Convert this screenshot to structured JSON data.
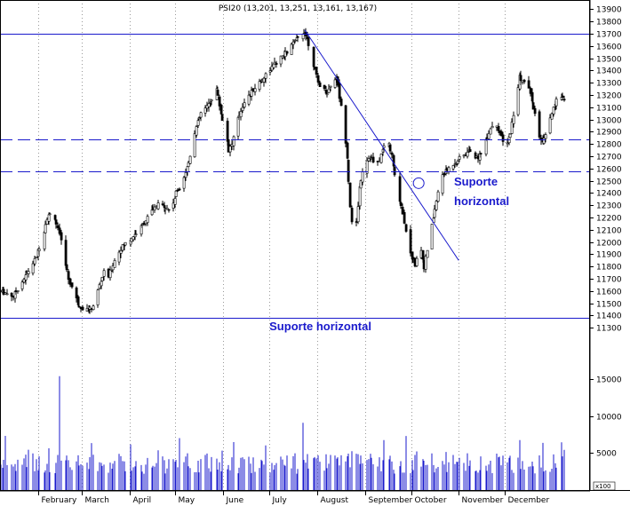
{
  "chart_data": {
    "type": "candlestick",
    "title": "PSI20 (13,201, 13,251, 13,161, 13,167)",
    "price_ylim": [
      11280,
      13960
    ],
    "price_ticks": [
      11300,
      11400,
      11500,
      11600,
      11700,
      11800,
      11900,
      12000,
      12100,
      12200,
      12300,
      12400,
      12500,
      12600,
      12700,
      12800,
      12900,
      13000,
      13100,
      13200,
      13300,
      13400,
      13500,
      13600,
      13700,
      13800,
      13900
    ],
    "volume_ylim": [
      0,
      18500
    ],
    "volume_ticks": [
      5000,
      10000,
      15000
    ],
    "volume_unit": "x100",
    "months": [
      {
        "label": "February",
        "day": 25
      },
      {
        "label": "March",
        "day": 53
      },
      {
        "label": "April",
        "day": 84
      },
      {
        "label": "May",
        "day": 114
      },
      {
        "label": "June",
        "day": 145
      },
      {
        "label": "July",
        "day": 175
      },
      {
        "label": "August",
        "day": 206
      },
      {
        "label": "September",
        "day": 237
      },
      {
        "label": "October",
        "day": 267
      },
      {
        "label": "November",
        "day": 298
      },
      {
        "label": "December",
        "day": 328
      }
    ],
    "horizontal_levels": [
      {
        "value": 13700,
        "style": "solid"
      },
      {
        "value": 12840,
        "style": "dashed"
      },
      {
        "value": 12580,
        "style": "dashed"
      },
      {
        "value": 11380,
        "style": "solid"
      }
    ],
    "trendline": {
      "from": {
        "day": 198,
        "value": 13730
      },
      "to": {
        "day": 298,
        "value": 11850
      }
    },
    "annotations": [
      {
        "text": "Suporte horizontal",
        "day": 175,
        "value": 11280
      },
      {
        "text": "Suporte",
        "day": 295,
        "value": 12460
      },
      {
        "text": "horizontal",
        "day": 295,
        "value": 12300
      }
    ],
    "price_anchors": [
      [
        0,
        11600
      ],
      [
        8,
        11560
      ],
      [
        15,
        11700
      ],
      [
        22,
        11850
      ],
      [
        26,
        12000
      ],
      [
        30,
        12200
      ],
      [
        34,
        12250
      ],
      [
        37,
        12100
      ],
      [
        40,
        11950
      ],
      [
        44,
        11700
      ],
      [
        47,
        11600
      ],
      [
        50,
        11500
      ],
      [
        54,
        11450
      ],
      [
        58,
        11450
      ],
      [
        61,
        11500
      ],
      [
        64,
        11650
      ],
      [
        67,
        11750
      ],
      [
        70,
        11720
      ],
      [
        74,
        11850
      ],
      [
        78,
        11950
      ],
      [
        82,
        12000
      ],
      [
        86,
        12050
      ],
      [
        90,
        12100
      ],
      [
        94,
        12180
      ],
      [
        98,
        12250
      ],
      [
        102,
        12300
      ],
      [
        106,
        12300
      ],
      [
        110,
        12250
      ],
      [
        114,
        12400
      ],
      [
        118,
        12500
      ],
      [
        122,
        12650
      ],
      [
        126,
        12900
      ],
      [
        130,
        13050
      ],
      [
        134,
        13100
      ],
      [
        138,
        13200
      ],
      [
        140,
        13250
      ],
      [
        143,
        13050
      ],
      [
        146,
        12900
      ],
      [
        148,
        12750
      ],
      [
        150,
        12800
      ],
      [
        154,
        13000
      ],
      [
        158,
        13150
      ],
      [
        162,
        13200
      ],
      [
        166,
        13280
      ],
      [
        170,
        13330
      ],
      [
        174,
        13400
      ],
      [
        178,
        13450
      ],
      [
        182,
        13500
      ],
      [
        186,
        13550
      ],
      [
        190,
        13620
      ],
      [
        194,
        13680
      ],
      [
        197,
        13720
      ],
      [
        200,
        13620
      ],
      [
        203,
        13450
      ],
      [
        206,
        13300
      ],
      [
        209,
        13250
      ],
      [
        212,
        13220
      ],
      [
        215,
        13300
      ],
      [
        218,
        13350
      ],
      [
        221,
        13100
      ],
      [
        223,
        12950
      ],
      [
        225,
        12700
      ],
      [
        227,
        12300
      ],
      [
        229,
        12000
      ],
      [
        231,
        12150
      ],
      [
        233,
        12450
      ],
      [
        236,
        12650
      ],
      [
        240,
        12700
      ],
      [
        244,
        12600
      ],
      [
        248,
        12750
      ],
      [
        251,
        12850
      ],
      [
        254,
        12700
      ],
      [
        257,
        12450
      ],
      [
        260,
        12300
      ],
      [
        263,
        12100
      ],
      [
        266,
        11900
      ],
      [
        269,
        11820
      ],
      [
        272,
        12000
      ],
      [
        275,
        11800
      ],
      [
        278,
        12000
      ],
      [
        281,
        12200
      ],
      [
        284,
        12400
      ],
      [
        287,
        12550
      ],
      [
        291,
        12600
      ],
      [
        295,
        12650
      ],
      [
        300,
        12700
      ],
      [
        305,
        12750
      ],
      [
        309,
        12680
      ],
      [
        313,
        12750
      ],
      [
        317,
        12900
      ],
      [
        321,
        13000
      ],
      [
        325,
        12850
      ],
      [
        328,
        12750
      ],
      [
        331,
        12900
      ],
      [
        334,
        13100
      ],
      [
        337,
        13350
      ],
      [
        340,
        13300
      ],
      [
        343,
        13250
      ],
      [
        346,
        13100
      ],
      [
        349,
        12900
      ],
      [
        352,
        12800
      ],
      [
        355,
        12900
      ],
      [
        358,
        13050
      ],
      [
        361,
        13150
      ],
      [
        364,
        13200
      ],
      [
        366,
        13167
      ]
    ],
    "volume_spikes": [
      {
        "day": 38,
        "value": 15400
      },
      {
        "day": 196,
        "value": 9100
      },
      {
        "day": 342,
        "value": 8800
      }
    ]
  }
}
